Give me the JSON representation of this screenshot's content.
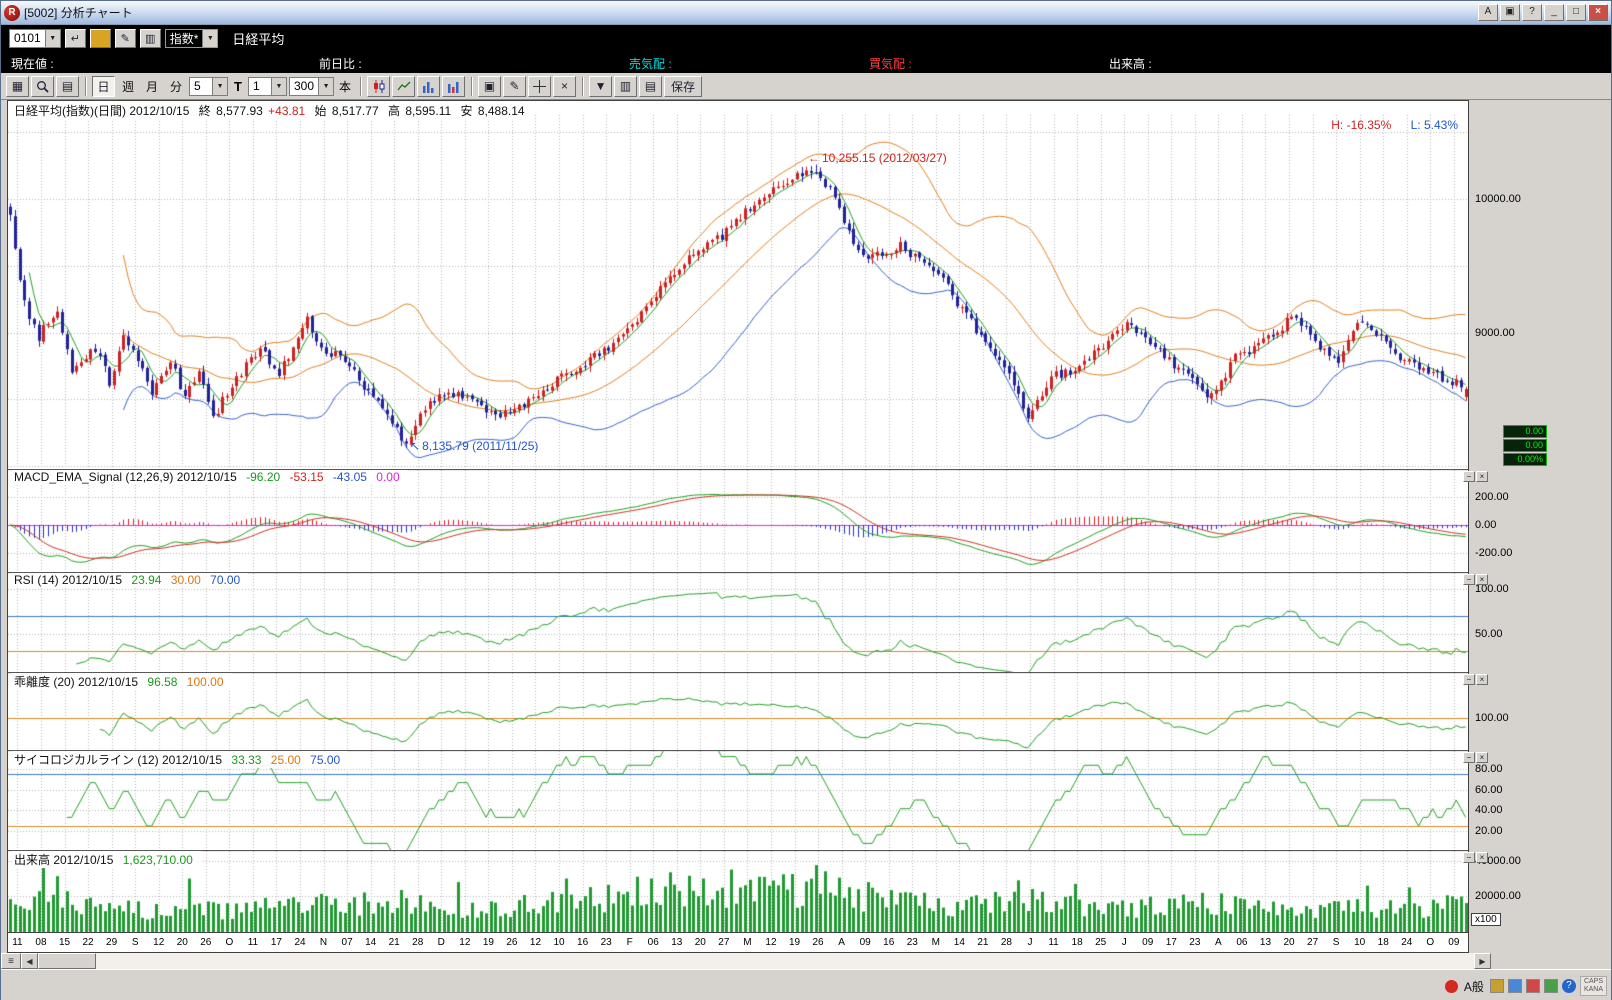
{
  "window": {
    "title": "[5002] 分析チャート",
    "buttons": {
      "a": "A",
      "layout": "▣",
      "help": "?",
      "minimize": "_",
      "maximize": "□",
      "close": "×"
    }
  },
  "icons": {
    "dropdown": "▼",
    "enter": "↵",
    "edit": "✎",
    "list": "▥",
    "print": "▦",
    "copy": "▤",
    "grid": "▣",
    "delete": "×",
    "grip": "≡",
    "scroll_left": "◀",
    "scroll_right": "▶",
    "panel_minimize": "−",
    "panel_close": "×"
  },
  "toolbar_top": {
    "code_value": "0101",
    "category_value": "指数*",
    "instrument_name": "日経平均"
  },
  "quote_bar": {
    "current_label": "現在値 :",
    "change_label": "前日比 :",
    "ask_label": "売気配 :",
    "bid_label": "買気配 :",
    "volume_label": "出来高 :"
  },
  "chart_toolbar": {
    "period_day": "日",
    "period_week": "週",
    "period_month": "月",
    "period_minute": "分",
    "minute_value": "5",
    "tick_label": "T",
    "interval_value": "1",
    "bars_value": "300",
    "bars_unit": "本",
    "save_label": "保存"
  },
  "main_chart": {
    "title": "日経平均(指数)(日間) 2012/10/15",
    "close_label": "終",
    "close_value": "8,577.93",
    "change_value": "+43.81",
    "open_label": "始",
    "open_value": "8,517.77",
    "high_label": "高",
    "high_value": "8,595.11",
    "low_label": "安",
    "low_value": "8,488.14",
    "high_pct": "H: -16.35%",
    "low_pct": "L: 5.43%",
    "peak_annotation": "10,255.15 (2012/03/27)",
    "trough_annotation": "8,135.79 (2011/11/25)",
    "ticker_badges": [
      "0.00",
      "0.00",
      "0.00%"
    ]
  },
  "macd_panel": {
    "title": "MACD_EMA_Signal (12,26,9) 2012/10/15",
    "macd_value": "-96.20",
    "signal_value": "-53.15",
    "osc_value": "-43.05",
    "zero_value": "0.00"
  },
  "rsi_panel": {
    "title": "RSI (14) 2012/10/15",
    "rsi_value": "23.94",
    "low_ref": "30.00",
    "high_ref": "70.00"
  },
  "kairi_panel": {
    "title": "乖離度 (20) 2012/10/15",
    "kairi_value": "96.58",
    "ref_value": "100.00"
  },
  "psych_panel": {
    "title": "サイコロジカルライン (12) 2012/10/15",
    "psych_value": "33.33",
    "low_ref": "25.00",
    "high_ref": "75.00"
  },
  "volume_panel": {
    "title": "出来高 2012/10/15",
    "volume_value": "1,623,710.00",
    "unit_label": "x100"
  },
  "status_bar": {
    "ime_mode": "A般",
    "help": "?",
    "caps": "CAPS",
    "kana": "KANA"
  },
  "colors": {
    "up": "#cc2222",
    "down": "#222299",
    "sma_fast": "#22a022",
    "sma_mid": "#e08020",
    "bb_upper": "#e08020",
    "bb_lower": "#3a62cc",
    "macd": "#22a022",
    "macd_signal": "#cc3322",
    "osc_pos": "#dd2222",
    "osc_neg": "#2233cc",
    "zero_line": "#ee22ee",
    "rsi": "#22a022",
    "ref_high": "#3a77cc",
    "ref_low": "#dd8822",
    "volume": "#229933"
  },
  "chart_data": {
    "type": "candlestick",
    "bars": 310,
    "x_labels": [
      "11",
      "08",
      "15",
      "22",
      "29",
      "S",
      "12",
      "20",
      "26",
      "O",
      "11",
      "17",
      "24",
      "N",
      "07",
      "14",
      "21",
      "28",
      "D",
      "12",
      "19",
      "26",
      "12",
      "10",
      "16",
      "23",
      "F",
      "06",
      "13",
      "20",
      "27",
      "M",
      "12",
      "19",
      "26",
      "A",
      "09",
      "16",
      "23",
      "M",
      "14",
      "21",
      "28",
      "J",
      "11",
      "18",
      "25",
      "J",
      "09",
      "17",
      "23",
      "A",
      "06",
      "13",
      "20",
      "27",
      "S",
      "10",
      "18",
      "24",
      "O",
      "09"
    ],
    "panels": {
      "price": {
        "range": [
          7980,
          10730
        ],
        "grid_step": 500,
        "ticks": [
          {
            "label": "10000.00",
            "value": 10000
          },
          {
            "label": "9000.00",
            "value": 9000
          }
        ],
        "overlays": {
          "sma_fast": 5,
          "sma_mid": 25,
          "bollinger_period": 25,
          "bollinger_k": 2
        },
        "key_points": {
          "peak": {
            "bar": 171,
            "high": 10255.15,
            "date": "2012/03/27"
          },
          "trough": {
            "bar": 84,
            "low": 8135.79,
            "date": "2011/11/25"
          },
          "last": {
            "date": "2012/10/15",
            "open": 8517.77,
            "high": 8595.11,
            "low": 8488.14,
            "close": 8577.93,
            "change": 43.81
          }
        },
        "anchors": [
          [
            0,
            9880
          ],
          [
            1,
            9650
          ],
          [
            2,
            9420
          ],
          [
            4,
            9100
          ],
          [
            6,
            8960
          ],
          [
            8,
            9090
          ],
          [
            10,
            9150
          ],
          [
            13,
            8720
          ],
          [
            16,
            8800
          ],
          [
            18,
            8890
          ],
          [
            21,
            8630
          ],
          [
            24,
            8980
          ],
          [
            27,
            8790
          ],
          [
            30,
            8560
          ],
          [
            34,
            8810
          ],
          [
            37,
            8510
          ],
          [
            40,
            8700
          ],
          [
            43,
            8360
          ],
          [
            46,
            8550
          ],
          [
            50,
            8760
          ],
          [
            53,
            8880
          ],
          [
            57,
            8690
          ],
          [
            61,
            8950
          ],
          [
            63,
            9100
          ],
          [
            66,
            8860
          ],
          [
            69,
            8830
          ],
          [
            72,
            8750
          ],
          [
            75,
            8590
          ],
          [
            78,
            8480
          ],
          [
            81,
            8330
          ],
          [
            84,
            8170
          ],
          [
            86,
            8330
          ],
          [
            89,
            8480
          ],
          [
            92,
            8520
          ],
          [
            95,
            8560
          ],
          [
            98,
            8480
          ],
          [
            101,
            8400
          ],
          [
            104,
            8370
          ],
          [
            107,
            8440
          ],
          [
            110,
            8480
          ],
          [
            113,
            8550
          ],
          [
            116,
            8640
          ],
          [
            119,
            8700
          ],
          [
            122,
            8770
          ],
          [
            125,
            8840
          ],
          [
            128,
            8900
          ],
          [
            131,
            9000
          ],
          [
            134,
            9150
          ],
          [
            137,
            9300
          ],
          [
            140,
            9420
          ],
          [
            143,
            9520
          ],
          [
            146,
            9600
          ],
          [
            149,
            9670
          ],
          [
            152,
            9750
          ],
          [
            155,
            9870
          ],
          [
            158,
            9980
          ],
          [
            161,
            10050
          ],
          [
            164,
            10110
          ],
          [
            167,
            10180
          ],
          [
            170,
            10210
          ],
          [
            171,
            10230
          ],
          [
            173,
            10110
          ],
          [
            175,
            10010
          ],
          [
            177,
            9800
          ],
          [
            180,
            9630
          ],
          [
            183,
            9560
          ],
          [
            186,
            9600
          ],
          [
            189,
            9650
          ],
          [
            192,
            9570
          ],
          [
            195,
            9520
          ],
          [
            198,
            9380
          ],
          [
            201,
            9230
          ],
          [
            204,
            9080
          ],
          [
            207,
            8930
          ],
          [
            210,
            8780
          ],
          [
            213,
            8640
          ],
          [
            215,
            8440
          ],
          [
            216,
            8360
          ],
          [
            219,
            8550
          ],
          [
            222,
            8680
          ],
          [
            225,
            8710
          ],
          [
            228,
            8780
          ],
          [
            231,
            8870
          ],
          [
            234,
            9000
          ],
          [
            237,
            9070
          ],
          [
            240,
            9010
          ],
          [
            243,
            8890
          ],
          [
            246,
            8780
          ],
          [
            249,
            8700
          ],
          [
            252,
            8610
          ],
          [
            254,
            8490
          ],
          [
            257,
            8630
          ],
          [
            260,
            8820
          ],
          [
            263,
            8870
          ],
          [
            266,
            8950
          ],
          [
            269,
            9020
          ],
          [
            272,
            9100
          ],
          [
            275,
            9060
          ],
          [
            277,
            8920
          ],
          [
            280,
            8840
          ],
          [
            282,
            8780
          ],
          [
            285,
            9000
          ],
          [
            287,
            9110
          ],
          [
            290,
            9000
          ],
          [
            293,
            8870
          ],
          [
            296,
            8800
          ],
          [
            299,
            8740
          ],
          [
            302,
            8700
          ],
          [
            305,
            8650
          ],
          [
            307,
            8620
          ],
          [
            309,
            8577.93
          ]
        ]
      },
      "macd": {
        "range": [
          -336,
          400
        ],
        "params": [
          12,
          26,
          9
        ],
        "ticks": [
          {
            "label": "200.00",
            "value": 200
          },
          {
            "label": "0.00",
            "value": 0
          },
          {
            "label": "-200.00",
            "value": -200
          }
        ],
        "last": {
          "macd": -96.2,
          "signal": -53.15,
          "osc": -43.05
        }
      },
      "rsi": {
        "range": [
          7,
          119
        ],
        "period": 14,
        "refs": [
          70,
          30
        ],
        "ticks": [
          {
            "label": "100.00",
            "value": 100
          },
          {
            "label": "50.00",
            "value": 50
          }
        ],
        "last": 23.94
      },
      "kairi": {
        "range": [
          93,
          110
        ],
        "period": 20,
        "refs": [
          100
        ],
        "ticks": [
          {
            "label": "100.00",
            "value": 100
          }
        ],
        "last": 96.58
      },
      "psych": {
        "range": [
          2,
          98
        ],
        "period": 12,
        "refs": [
          75,
          25
        ],
        "ticks": [
          {
            "label": "80.00",
            "value": 80
          },
          {
            "label": "60.00",
            "value": 60
          },
          {
            "label": "40.00",
            "value": 40
          },
          {
            "label": "20.00",
            "value": 20
          }
        ],
        "last": 33.33
      },
      "volume": {
        "range": [
          0,
          46000
        ],
        "scale_note": "x100",
        "ticks": [
          {
            "label": "40000.00",
            "value": 40000
          },
          {
            "label": "20000.00",
            "value": 20000
          }
        ],
        "anchors": [
          [
            0,
            15000
          ],
          [
            10,
            22000
          ],
          [
            20,
            13000
          ],
          [
            40,
            12000
          ],
          [
            60,
            14000
          ],
          [
            84,
            17000
          ],
          [
            100,
            12000
          ],
          [
            115,
            16000
          ],
          [
            130,
            20000
          ],
          [
            145,
            23000
          ],
          [
            160,
            22000
          ],
          [
            171,
            26000
          ],
          [
            185,
            17000
          ],
          [
            200,
            15000
          ],
          [
            215,
            19000
          ],
          [
            230,
            13000
          ],
          [
            245,
            14000
          ],
          [
            255,
            16000
          ],
          [
            270,
            12000
          ],
          [
            285,
            15000
          ],
          [
            300,
            13000
          ],
          [
            309,
            16237
          ]
        ],
        "spikes": [
          [
            7,
            36000
          ],
          [
            38,
            30000
          ],
          [
            95,
            28000
          ],
          [
            118,
            30000
          ],
          [
            133,
            31000
          ],
          [
            140,
            33500
          ],
          [
            147,
            30000
          ],
          [
            153,
            35000
          ],
          [
            159,
            31000
          ],
          [
            166,
            32500
          ],
          [
            171,
            37500
          ],
          [
            176,
            30500
          ],
          [
            182,
            28000
          ],
          [
            214,
            29000
          ],
          [
            226,
            27000
          ],
          [
            288,
            26000
          ],
          [
            297,
            25000
          ]
        ],
        "last": 16237
      }
    }
  }
}
